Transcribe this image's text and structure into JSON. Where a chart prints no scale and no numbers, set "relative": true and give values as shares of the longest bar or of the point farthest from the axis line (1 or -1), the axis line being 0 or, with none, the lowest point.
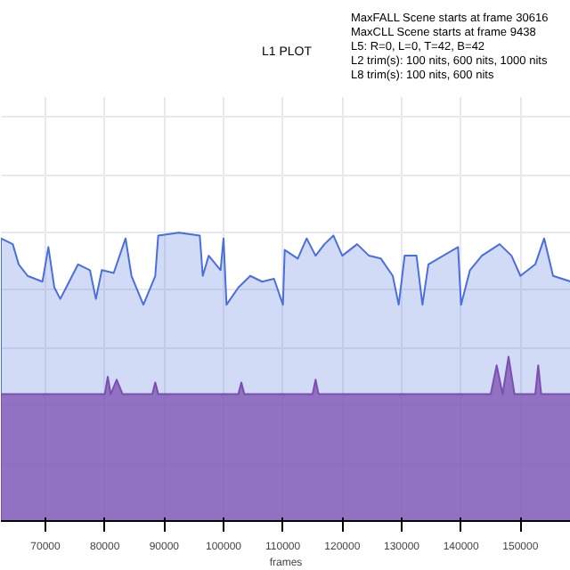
{
  "chart_data": {
    "type": "area",
    "title": "L1 PLOT",
    "xlabel": "frames",
    "relative": true,
    "grid": true,
    "annotations": [
      "MaxFALL Scene starts at frame 30616",
      "MaxCLL Scene starts at frame 9438",
      "L5: R=0, L=0, T=42, B=42",
      "L2 trim(s): 100 nits, 600 nits, 1000 nits",
      "L8 trim(s): 100 nits, 600 nits"
    ],
    "xlim": [
      62500,
      158500
    ],
    "xticks": [
      70000,
      80000,
      90000,
      100000,
      110000,
      120000,
      130000,
      140000,
      150000
    ],
    "series": [
      {
        "color": "#4a6fdc",
        "x": [
          62500,
          64500,
          65500,
          67000,
          69500,
          70500,
          71500,
          72500,
          73500,
          75500,
          77500,
          78500,
          79500,
          81500,
          83500,
          84500,
          86500,
          88500,
          89000,
          92500,
          96000,
          96500,
          97500,
          99500,
          100000,
          100500,
          102500,
          104500,
          106500,
          108500,
          110000,
          110300,
          112500,
          114000,
          115500,
          117000,
          118500,
          120000,
          122500,
          124500,
          126500,
          128500,
          129500,
          130500,
          132500,
          133500,
          134500,
          139500,
          140000,
          141500,
          143500,
          146500,
          148500,
          150000,
          152500,
          154000,
          155500,
          158500
        ],
        "values": [
          0.98,
          0.96,
          0.89,
          0.85,
          0.83,
          0.95,
          0.81,
          0.77,
          0.81,
          0.89,
          0.87,
          0.77,
          0.87,
          0.86,
          0.98,
          0.85,
          0.75,
          0.85,
          0.99,
          1.0,
          0.99,
          0.85,
          0.92,
          0.87,
          0.98,
          0.75,
          0.81,
          0.85,
          0.83,
          0.84,
          0.75,
          0.94,
          0.91,
          0.98,
          0.92,
          0.96,
          0.99,
          0.92,
          0.96,
          0.92,
          0.91,
          0.85,
          0.75,
          0.92,
          0.92,
          0.75,
          0.89,
          0.95,
          0.75,
          0.87,
          0.92,
          0.96,
          0.92,
          0.85,
          0.89,
          0.98,
          0.85,
          0.83
        ]
      },
      {
        "color": "#7b4fb0",
        "x": [
          62500,
          80000,
          80500,
          81000,
          82000,
          83000,
          88000,
          88500,
          89000,
          102500,
          103000,
          103500,
          115000,
          115500,
          116000,
          145000,
          146000,
          147000,
          148000,
          149000,
          150000,
          152500,
          153000,
          153500,
          158500
        ],
        "values": [
          0.44,
          0.44,
          0.5,
          0.44,
          0.49,
          0.44,
          0.44,
          0.48,
          0.44,
          0.44,
          0.48,
          0.44,
          0.44,
          0.49,
          0.44,
          0.44,
          0.54,
          0.44,
          0.57,
          0.44,
          0.44,
          0.44,
          0.54,
          0.44,
          0.44
        ]
      }
    ]
  }
}
